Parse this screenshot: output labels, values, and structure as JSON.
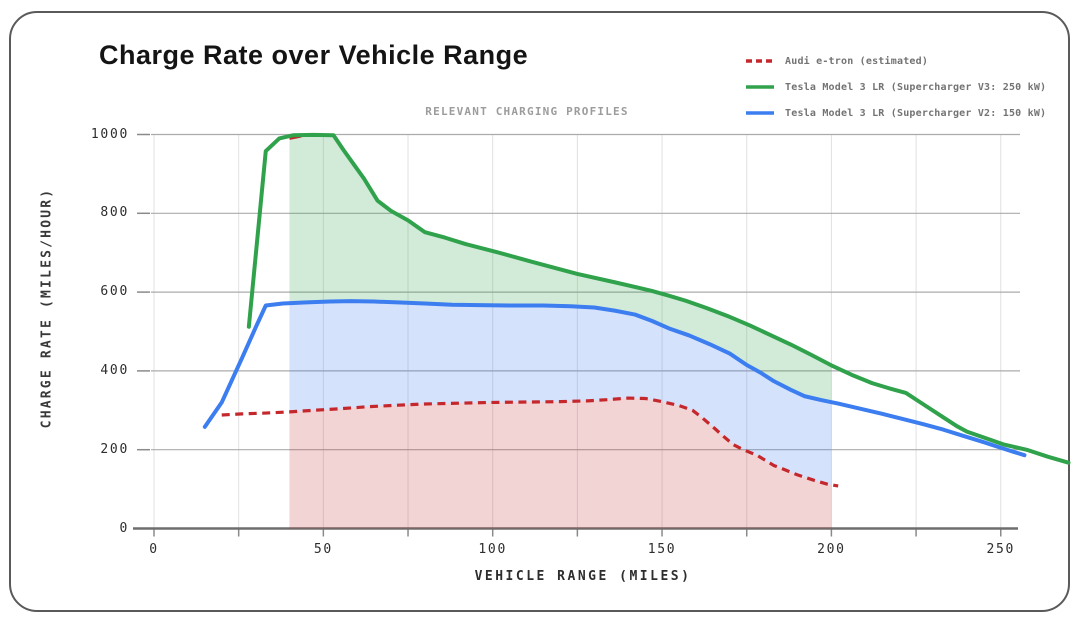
{
  "title": "Charge Rate over Vehicle Range",
  "subtitle": "RELEVANT CHARGING PROFILES",
  "legend": [
    {
      "label": "Audi e-tron (estimated)",
      "color": "#c5282c",
      "style": "dashed"
    },
    {
      "label": "Tesla Model 3 LR (Supercharger V3: 250 kW)",
      "color": "#30a24c",
      "style": "solid"
    },
    {
      "label": "Tesla Model 3 LR (Supercharger V2: 150 kW)",
      "color": "#3c7df0",
      "style": "solid"
    }
  ],
  "chart_data": {
    "type": "line",
    "title": "Charge Rate over Vehicle Range",
    "subtitle": "RELEVANT CHARGING PROFILES",
    "xlabel": "VEHICLE RANGE (MILES)",
    "ylabel": "CHARGE RATE (MILES/HOUR)",
    "xlim": [
      0,
      272
    ],
    "ylim": [
      0,
      1000
    ],
    "x_ticks": [
      0,
      50,
      100,
      150,
      200,
      250
    ],
    "x_minor_step": 25,
    "y_ticks": [
      0,
      200,
      400,
      600,
      800,
      1000
    ],
    "grid": true,
    "legend_position": "top-right",
    "shaded_band_x_range": [
      40,
      200
    ],
    "series": [
      {
        "name": "Tesla Model 3 LR (Supercharger V3: 250 kW)",
        "color": "#30a24c",
        "dashed": false,
        "fill_down_to_series": "Tesla Model 3 LR (Supercharger V2: 150 kW)",
        "fill_color": "rgba(49,162,76,0.22)",
        "points": [
          [
            28,
            512
          ],
          [
            33,
            958
          ],
          [
            37,
            990
          ],
          [
            41,
            998
          ],
          [
            47,
            999
          ],
          [
            53,
            998
          ],
          [
            56,
            960
          ],
          [
            59,
            924
          ],
          [
            62,
            888
          ],
          [
            66,
            832
          ],
          [
            70,
            806
          ],
          [
            75,
            782
          ],
          [
            80,
            752
          ],
          [
            86,
            738
          ],
          [
            92,
            722
          ],
          [
            101,
            702
          ],
          [
            112,
            676
          ],
          [
            125,
            646
          ],
          [
            136,
            625
          ],
          [
            147,
            603
          ],
          [
            152,
            591
          ],
          [
            157,
            578
          ],
          [
            163,
            560
          ],
          [
            170,
            537
          ],
          [
            176,
            515
          ],
          [
            182,
            491
          ],
          [
            188,
            467
          ],
          [
            194,
            441
          ],
          [
            200,
            414
          ],
          [
            206,
            390
          ],
          [
            212,
            369
          ],
          [
            217,
            356
          ],
          [
            222,
            344
          ],
          [
            227,
            316
          ],
          [
            232,
            288
          ],
          [
            237,
            260
          ],
          [
            240,
            246
          ],
          [
            245,
            231
          ],
          [
            251,
            213
          ],
          [
            258,
            199
          ],
          [
            264,
            182
          ],
          [
            270,
            167
          ]
        ]
      },
      {
        "name": "Tesla Model 3 LR (Supercharger V2: 150 kW)",
        "color": "#3c7df0",
        "dashed": false,
        "fill_down_to_series": "Audi e-tron (estimated)",
        "fill_color": "rgba(59,125,240,0.22)",
        "points": [
          [
            15,
            258
          ],
          [
            20,
            320
          ],
          [
            26,
            433
          ],
          [
            30,
            510
          ],
          [
            33,
            566
          ],
          [
            38,
            571
          ],
          [
            45,
            574
          ],
          [
            52,
            576
          ],
          [
            58,
            577
          ],
          [
            65,
            576
          ],
          [
            72,
            574
          ],
          [
            80,
            571
          ],
          [
            88,
            568
          ],
          [
            96,
            567
          ],
          [
            105,
            566
          ],
          [
            115,
            566
          ],
          [
            123,
            564
          ],
          [
            130,
            561
          ],
          [
            136,
            553
          ],
          [
            142,
            543
          ],
          [
            147,
            527
          ],
          [
            152,
            508
          ],
          [
            158,
            490
          ],
          [
            164,
            468
          ],
          [
            170,
            444
          ],
          [
            175,
            415
          ],
          [
            179,
            396
          ],
          [
            183,
            374
          ],
          [
            188,
            352
          ],
          [
            192,
            336
          ],
          [
            197,
            326
          ],
          [
            202,
            317
          ],
          [
            208,
            305
          ],
          [
            215,
            291
          ],
          [
            221,
            278
          ],
          [
            227,
            265
          ],
          [
            233,
            251
          ],
          [
            239,
            235
          ],
          [
            245,
            219
          ],
          [
            250,
            205
          ],
          [
            254,
            194
          ],
          [
            257,
            186
          ]
        ]
      },
      {
        "name": "Audi e-tron (estimated)",
        "color": "#c5282c",
        "dashed": true,
        "fill_down_to_series": "zero",
        "fill_color": "rgba(197,40,43,0.20)",
        "points": [
          [
            20,
            288
          ],
          [
            26,
            291
          ],
          [
            33,
            293
          ],
          [
            40,
            296
          ],
          [
            47,
            300
          ],
          [
            55,
            304
          ],
          [
            63,
            309
          ],
          [
            72,
            313
          ],
          [
            80,
            316
          ],
          [
            90,
            318
          ],
          [
            100,
            320
          ],
          [
            110,
            321
          ],
          [
            120,
            322
          ],
          [
            128,
            324
          ],
          [
            134,
            327
          ],
          [
            140,
            331
          ],
          [
            145,
            330
          ],
          [
            150,
            322
          ],
          [
            155,
            312
          ],
          [
            159,
            300
          ],
          [
            162,
            280
          ],
          [
            165,
            258
          ],
          [
            168,
            235
          ],
          [
            171,
            213
          ],
          [
            174,
            200
          ],
          [
            178,
            186
          ],
          [
            183,
            160
          ],
          [
            186,
            150
          ],
          [
            190,
            136
          ],
          [
            195,
            122
          ],
          [
            199,
            112
          ],
          [
            202,
            108
          ]
        ]
      }
    ],
    "artifact_segment": {
      "color": "#c5282c",
      "points": [
        [
          40,
          990
        ],
        [
          43.5,
          996
        ]
      ]
    }
  }
}
